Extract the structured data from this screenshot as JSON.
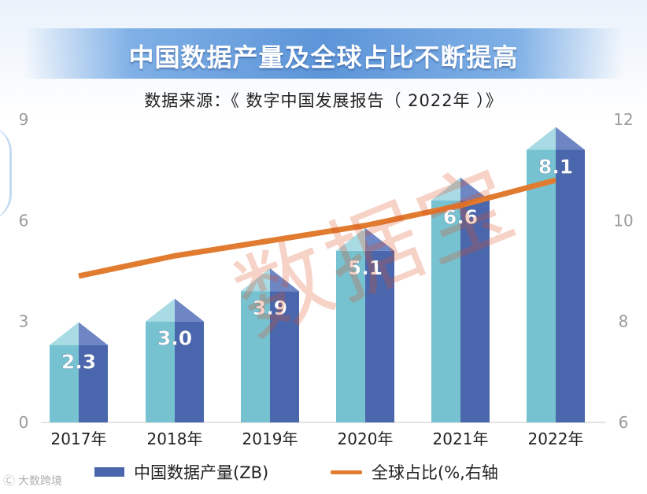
{
  "header": {
    "title": "中国数据产量及全球占比不断提高",
    "subtitle": "数据来源：《 数字中国发展报告（ 2022年 ）》"
  },
  "watermark": "数据宝",
  "source_logo": {
    "mark": "Ⓒ",
    "text": "大数跨境"
  },
  "colors": {
    "bar_left": "#76c2d0",
    "bar_right": "#4a66ad",
    "cap_left": "#a9dbe5",
    "cap_right": "#6e86c4",
    "line": "#e07b2f"
  },
  "chart_data": {
    "type": "bar",
    "title": "中国数据产量及全球占比不断提高",
    "categories": [
      "2017年",
      "2018年",
      "2019年",
      "2020年",
      "2021年",
      "2022年"
    ],
    "series": [
      {
        "name": "中国数据产量(ZB)",
        "type": "bar",
        "axis": "left",
        "values": [
          2.3,
          3.0,
          3.9,
          5.1,
          6.6,
          8.1
        ],
        "labels": [
          "2.3",
          "3.0",
          "3.9",
          "5.1",
          "6.6",
          "8.1"
        ]
      },
      {
        "name": "全球占比(%,右轴",
        "type": "line",
        "axis": "right",
        "values": [
          8.9,
          9.3,
          9.6,
          9.9,
          10.3,
          10.8
        ]
      }
    ],
    "y_left": {
      "min": 0,
      "max": 9,
      "ticks": [
        0,
        3,
        6,
        9
      ],
      "tick_labels": [
        "0",
        "3",
        "6",
        "9"
      ]
    },
    "y_right": {
      "min": 6,
      "max": 12,
      "ticks": [
        6,
        8,
        10,
        12
      ],
      "tick_labels": [
        "6",
        "8",
        "10",
        "12"
      ]
    },
    "legend": {
      "position": "bottom",
      "bar_label": "中国数据产量(ZB)",
      "line_label": "全球占比(%,右轴"
    }
  }
}
